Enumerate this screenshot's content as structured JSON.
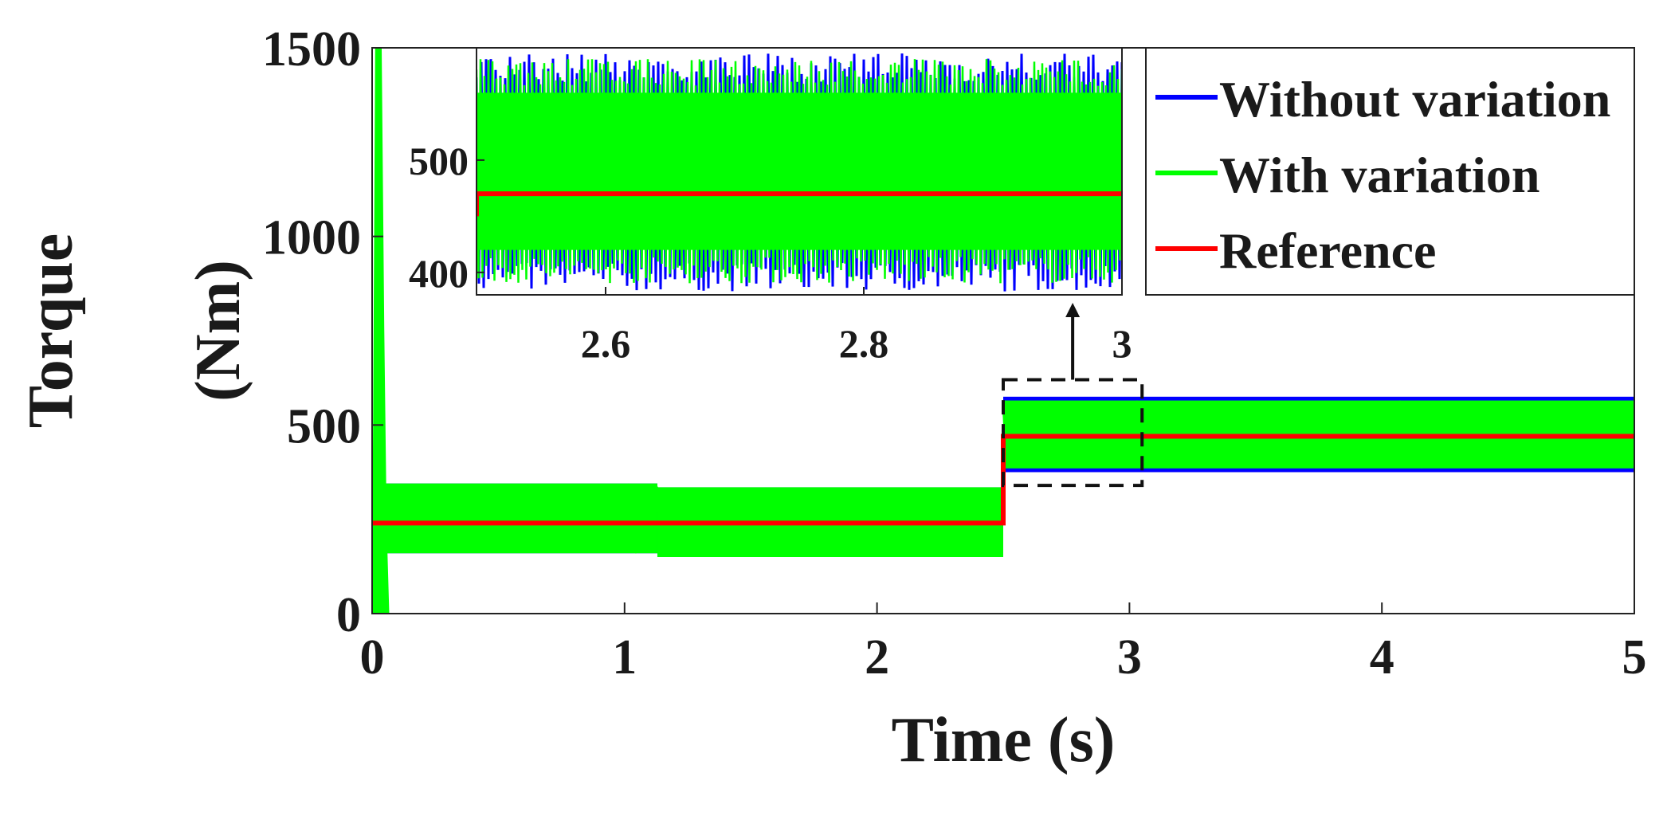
{
  "chart_data": {
    "type": "line",
    "xlabel": "Time (s)",
    "ylabel_line1": "Torque",
    "ylabel_line2": "(Nm)",
    "xlim": [
      0,
      5
    ],
    "ylim": [
      0,
      1500
    ],
    "x_ticks": [
      "0",
      "1",
      "2",
      "3",
      "4",
      "5"
    ],
    "y_ticks": [
      "0",
      "500",
      "1000",
      "1500"
    ],
    "grid": false,
    "legend_position": "top-right",
    "legend": [
      "Without variation",
      "With variation",
      "Reference"
    ],
    "series": [
      {
        "name": "Without variation",
        "color": "#0000ff",
        "bands": [
          {
            "x0": 0.05,
            "x1": 1.13,
            "low": 160,
            "high": 345
          },
          {
            "x0": 1.13,
            "x1": 2.5,
            "low": 150,
            "high": 335
          },
          {
            "x0": 2.5,
            "x1": 5.0,
            "low": 375,
            "high": 575
          }
        ]
      },
      {
        "name": "With variation",
        "color": "#00ff00",
        "bands": [
          {
            "x0": 0.05,
            "x1": 1.13,
            "low": 160,
            "high": 345
          },
          {
            "x0": 1.13,
            "x1": 2.5,
            "low": 150,
            "high": 335
          },
          {
            "x0": 2.5,
            "x1": 5.0,
            "low": 385,
            "high": 565
          }
        ],
        "startup_spike": [
          {
            "x": 0.0,
            "y": 0
          },
          {
            "x": 0.01,
            "y": 310
          },
          {
            "x": 0.02,
            "y": 1500
          },
          {
            "x": 0.03,
            "y": 1500
          },
          {
            "x": 0.04,
            "y": 760
          },
          {
            "x": 0.05,
            "y": 230
          },
          {
            "x": 0.06,
            "y": 0
          }
        ]
      },
      {
        "name": "Reference",
        "color": "#ff0000",
        "points": [
          {
            "x": 0.0,
            "y": 240
          },
          {
            "x": 2.5,
            "y": 240
          },
          {
            "x": 2.5,
            "y": 470
          },
          {
            "x": 5.0,
            "y": 470
          }
        ]
      }
    ],
    "zoom_box": {
      "x0": 2.5,
      "x1": 3.05,
      "y0": 340,
      "y1": 620
    },
    "inset": {
      "xlim": [
        2.5,
        3.0
      ],
      "ylim": [
        380,
        600
      ],
      "x_ticks": [
        "2.6",
        "2.8",
        "3"
      ],
      "y_ticks": [
        "400",
        "500"
      ],
      "reference": {
        "x0": 2.5,
        "x1": 3.0,
        "y": 470,
        "step_from": 450
      },
      "without_variation_band": {
        "low": 383,
        "high": 595
      },
      "with_variation_band": {
        "low": 390,
        "high": 590
      }
    }
  }
}
